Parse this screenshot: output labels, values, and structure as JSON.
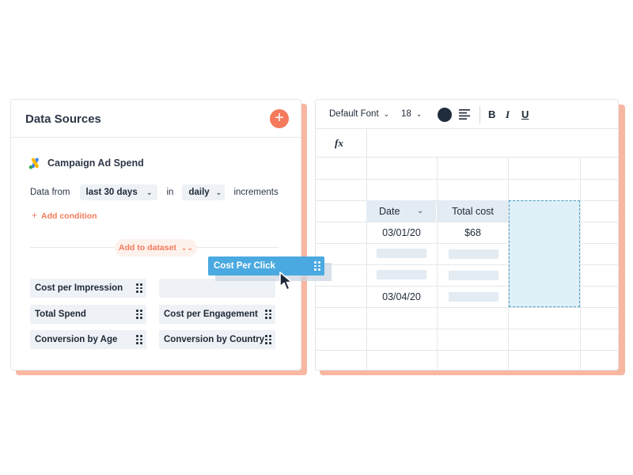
{
  "data_sources": {
    "title": "Data Sources",
    "add_button_icon": "plus-icon",
    "source": {
      "name": "Campaign Ad Spend",
      "logo_icon": "google-ads-logo-icon"
    },
    "filter": {
      "prefix": "Data from",
      "range": "last 30 days",
      "joiner": "in",
      "increment": "daily",
      "suffix": "increments"
    },
    "add_condition": "Add condition",
    "add_to_dataset": "Add to dataset",
    "metrics": [
      "Cost per Impression",
      "Total Spend",
      "Cost per Engagement",
      "Conversion by Age",
      "Conversion by Country"
    ],
    "dragging_metric": "Cost Per Click"
  },
  "editor": {
    "toolbar": {
      "font": "Default Font",
      "size": "18",
      "bold": "B",
      "italic": "I",
      "underline": "U"
    },
    "formula_label": "fx",
    "table": {
      "headers": [
        "Date",
        "Total cost"
      ],
      "rows": [
        {
          "date": "03/01/20",
          "cost": "$68"
        },
        {
          "date": "",
          "cost": ""
        },
        {
          "date": "",
          "cost": ""
        },
        {
          "date": "03/04/20",
          "cost": ""
        }
      ]
    }
  },
  "colors": {
    "accent": "#f47a5b",
    "shadow": "#f8b7a2",
    "drag": "#4aa9e0",
    "drop_zone": "#dff0f8"
  }
}
